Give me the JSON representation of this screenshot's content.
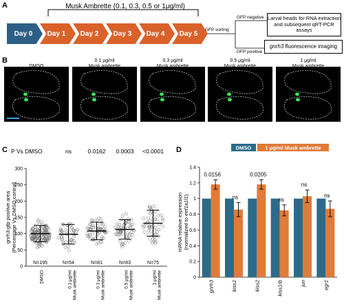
{
  "panelA": {
    "label": "A",
    "treatment": "Musk Ambrette (0.1, 0.3, 0.5 or 1μg/ml)",
    "days": [
      "Day 0",
      "Day 1",
      "Day 2",
      "Day 3",
      "Day 4",
      "Day 5"
    ],
    "sorting": "GFP sorting",
    "gfp_negative": "GFP negative",
    "gfp_positive": "GFP positive",
    "box1": "Larval heads for RNA extraction and subsequent qRT-PCR assays",
    "box2_gene": "gnrh3",
    "box2_rest": " fluorescence imaging"
  },
  "panelB": {
    "label": "B",
    "captions": [
      "DMSO",
      "0.1 μg/ml Musk ambrette",
      "0.3 μg/ml Musk ambrette",
      "0.5 μg/ml Musk ambrette",
      "1 μg/ml Musk ambrette"
    ]
  },
  "panelC": {
    "label": "C",
    "header": "P Vs DMSO",
    "chart_data": {
      "type": "scatter",
      "ylabel": "gnrh3:gfp positive area (Percentage Vs DMSO control)",
      "yticks": [
        "0",
        "50",
        "100",
        "150",
        "200",
        "250",
        "300"
      ],
      "ylim": [
        0,
        300
      ],
      "categories": [
        "DMSO",
        "0.1 μg/ml Musk ambrette",
        "0.3 μg/ml Musk ambrette",
        "0.5 μg/ml Musk ambrette",
        "1 μg/ml Musk ambrette"
      ],
      "n_labels": [
        "N=195",
        "N=54",
        "N=81",
        "N=83",
        "N=75"
      ],
      "p_values": [
        "",
        "ns",
        "0.0162",
        "0.0003",
        "<0.0001"
      ],
      "means": [
        100,
        98,
        108,
        113,
        132
      ],
      "sd": [
        25,
        30,
        27,
        30,
        40
      ]
    }
  },
  "panelD": {
    "label": "D",
    "chart_data": {
      "type": "bar",
      "ylabel": "mRNA relative expression",
      "ylabel2_pre": "(normalized to ",
      "ylabel2_gene": "eef1a1l1",
      "ylabel2_post": ")",
      "yticks": [
        "0",
        "0.2",
        "0.4",
        "0.6",
        "0.8",
        "1",
        "1.2",
        "1.4"
      ],
      "ylim": [
        0,
        1.4
      ],
      "categories": [
        "gnrh3",
        "kiss1",
        "kiss2",
        "kiss1rb",
        "jun",
        "egr1"
      ],
      "series": [
        {
          "name": "DMSO",
          "color": "#2d6a8a",
          "values": [
            1,
            1,
            1,
            1,
            1,
            1
          ]
        },
        {
          "name": "1 μg/ml Musk ambrette",
          "color": "#e07b39",
          "values": [
            1.18,
            0.86,
            1.18,
            0.85,
            1.03,
            0.87
          ],
          "err": [
            0.06,
            0.09,
            0.06,
            0.07,
            0.08,
            0.1
          ]
        }
      ],
      "significance": [
        "0.0156",
        "ns",
        "0.0205",
        "ns",
        "ns",
        "ns"
      ]
    }
  }
}
